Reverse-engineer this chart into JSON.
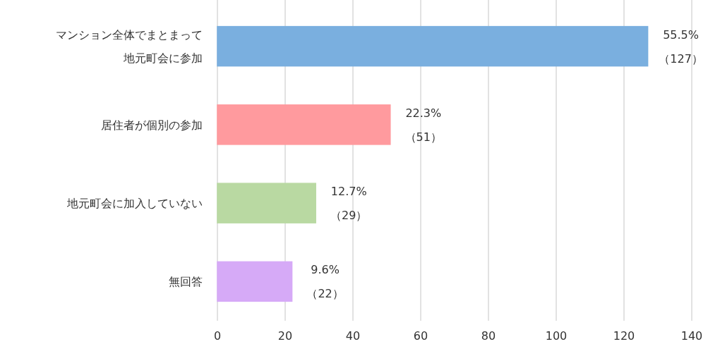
{
  "chart_data": {
    "type": "bar",
    "orientation": "horizontal",
    "categories": [
      "マンション全体でまとまって地元町会に参加",
      "居住者が個別の参加",
      "地元町会に加入していない",
      "無回答"
    ],
    "values": [
      127,
      51,
      29,
      22
    ],
    "colors": [
      "#7aafdf",
      "#ff9a9e",
      "#b9d9a2",
      "#d6aaf7"
    ],
    "value_labels": [
      "55.5%\n（127）",
      "22.3%\n（51）",
      "12.7%\n（29）",
      "9.6%\n（22）"
    ],
    "xlim": [
      0,
      140
    ],
    "xticks": [
      0,
      20,
      40,
      60,
      80,
      100,
      120,
      140
    ],
    "grid": "x"
  }
}
